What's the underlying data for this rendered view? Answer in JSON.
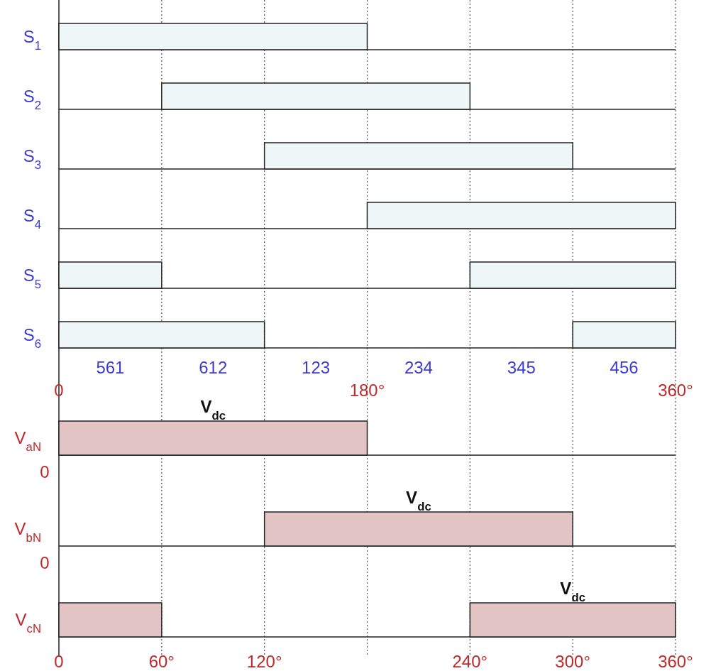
{
  "chart_data": [
    {
      "type": "bar",
      "orientation": "horizontal",
      "categories": [
        "S$_{1}$",
        "S$_{2}$",
        "S$_{3}$",
        "S$_{4}$",
        "S$_{5}$",
        "S$_{6}$"
      ],
      "series": [
        {
          "color": "#eef6f8",
          "values": [
            180,
            180,
            180,
            180,
            60,
            120
          ],
          "base": [
            0,
            60,
            120,
            180,
            0,
            0
          ]
        },
        {
          "color": "#eef6f8",
          "values": [
            null,
            null,
            null,
            null,
            120,
            60
          ],
          "base": [
            null,
            null,
            null,
            null,
            240,
            300
          ]
        }
      ],
      "xlim": [
        0,
        360
      ],
      "xticks": [
        0,
        {
          "value": 60,
          "label": null
        },
        {
          "value": 120,
          "label": null
        },
        {
          "value": 180,
          "label": "180°"
        },
        {
          "value": 240,
          "label": null
        },
        {
          "value": 300,
          "label": null
        },
        {
          "value": 360,
          "label": "360°"
        }
      ],
      "grid": "x",
      "annotations": [
        "561",
        "612",
        "123",
        "234",
        "345",
        "456"
      ]
    },
    {
      "type": "bar",
      "orientation": "horizontal",
      "categories": [
        "V$_{aN}$",
        "V$_{bN}$",
        "V$_{cN}$"
      ],
      "series": [
        {
          "color": "#e3c4c4",
          "values": [
            180,
            180,
            120
          ],
          "base": [
            0,
            120,
            240
          ]
        },
        {
          "color": "#e3c4c4",
          "values": [
            null,
            null,
            60
          ],
          "base": [
            null,
            null,
            0
          ]
        }
      ],
      "xlim": [
        0,
        360
      ],
      "xticks": [
        0,
        {
          "value": 60,
          "label": "60°"
        },
        {
          "value": 120,
          "label": "120°"
        },
        {
          "value": 180,
          "label": null
        },
        {
          "value": 240,
          "label": "240°"
        },
        {
          "value": 300,
          "label": "300°"
        },
        {
          "value": 360,
          "label": "360°"
        }
      ],
      "grid": "x",
      "annotations": [
        "V$_{dc}$",
        "V$_{dc}$",
        "V$_{dc}$",
        "0",
        "0"
      ]
    }
  ]
}
